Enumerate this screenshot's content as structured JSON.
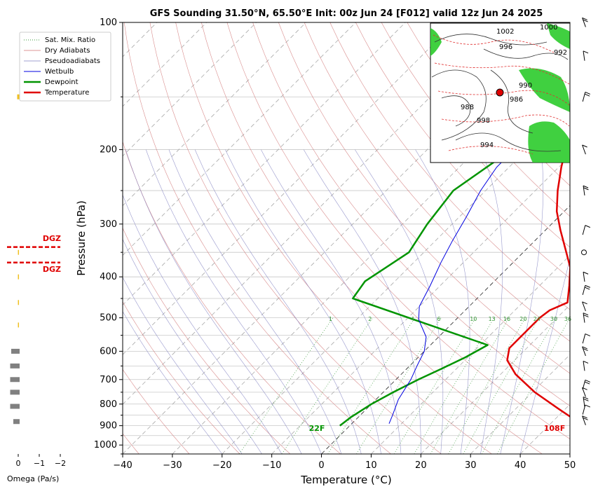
{
  "chart_data": {
    "type": "line",
    "subtype": "skew-T log-P sounding",
    "title": "GFS Sounding 31.50°N, 65.50°E Init: 00z Jun 24 [F012] valid 12z Jun 24 2025",
    "xlabel": "Temperature (°C)",
    "ylabel": "Pressure (hPa)",
    "xlim": [
      -40,
      50
    ],
    "ylim": [
      1050,
      100
    ],
    "y_scale": "log",
    "x_ticks": [
      -40,
      -30,
      -20,
      -10,
      0,
      10,
      20,
      30,
      40,
      50
    ],
    "y_ticks": [
      100,
      200,
      300,
      400,
      500,
      600,
      700,
      800,
      900,
      1000
    ],
    "grid": true,
    "legend_position": "top-left",
    "legend": [
      "Sat. Mix. Ratio",
      "Dry Adiabats",
      "Pseudoadiabats",
      "Wetbulb",
      "Dewpoint",
      "Temperature"
    ],
    "mixing_ratio_labels": [
      "1",
      "2",
      "4",
      "6",
      "10",
      "13",
      "16",
      "20",
      "24",
      "30",
      "36"
    ],
    "surface_temperature_label": "108F",
    "surface_dewpoint_label": "22F",
    "series": [
      {
        "name": "Temperature",
        "color": "#e00000",
        "points": [
          [
            47.0,
            900
          ],
          [
            45.0,
            880
          ],
          [
            38.5,
            820
          ],
          [
            30.5,
            750
          ],
          [
            23.0,
            680
          ],
          [
            18.5,
            630
          ],
          [
            16.5,
            590
          ],
          [
            16.5,
            560
          ],
          [
            16.5,
            500
          ],
          [
            17.0,
            480
          ],
          [
            19.0,
            460
          ],
          [
            16.0,
            420
          ],
          [
            12.5,
            380
          ],
          [
            8.0,
            345
          ],
          [
            3.0,
            310
          ],
          [
            -1.5,
            280
          ],
          [
            -5.5,
            250
          ],
          [
            -9.5,
            220
          ],
          [
            -11.5,
            205
          ],
          [
            -14.0,
            185
          ],
          [
            -15.5,
            160
          ],
          [
            -16.5,
            140
          ],
          [
            -19.0,
            125
          ],
          [
            -21.0,
            112
          ],
          [
            -22.5,
            100
          ]
        ]
      },
      {
        "name": "Dewpoint",
        "color": "#009400",
        "points": [
          [
            -2.0,
            900
          ],
          [
            -1.5,
            860
          ],
          [
            0.0,
            800
          ],
          [
            2.0,
            750
          ],
          [
            4.5,
            700
          ],
          [
            7.0,
            660
          ],
          [
            9.5,
            620
          ],
          [
            11.5,
            580
          ],
          [
            -25.0,
            450
          ],
          [
            -26.0,
            410
          ],
          [
            -23.0,
            350
          ],
          [
            -25.0,
            300
          ],
          [
            -26.5,
            250
          ],
          [
            -23.0,
            200
          ],
          [
            -21.0,
            160
          ],
          [
            -20.5,
            140
          ],
          [
            -23.0,
            125
          ],
          [
            -27.0,
            110
          ],
          [
            -29.0,
            100
          ]
        ]
      },
      {
        "name": "Wetbulb",
        "color": "#0000e0",
        "points": [
          [
            7.5,
            890
          ],
          [
            6.5,
            850
          ],
          [
            4.5,
            780
          ],
          [
            3.0,
            700
          ],
          [
            1.5,
            650
          ],
          [
            0.0,
            600
          ],
          [
            -2.5,
            555
          ],
          [
            -7.5,
            505
          ],
          [
            -10.0,
            470
          ],
          [
            -12.0,
            420
          ],
          [
            -14.5,
            370
          ],
          [
            -16.5,
            330
          ],
          [
            -18.5,
            290
          ],
          [
            -21.0,
            250
          ],
          [
            -22.5,
            220
          ],
          [
            -22.5,
            205
          ],
          [
            -21.5,
            180
          ],
          [
            -19.0,
            155
          ],
          [
            -17.5,
            140
          ]
        ]
      }
    ],
    "omega_panel": {
      "xlabel": "Omega (Pa/s)",
      "x_ticks": [
        "0",
        "−1",
        "−2"
      ],
      "xlim": [
        0.5,
        -2
      ],
      "bars": [
        {
          "pressure": 880,
          "omega": -0.3
        },
        {
          "pressure": 810,
          "omega": -0.45
        },
        {
          "pressure": 750,
          "omega": -0.45
        },
        {
          "pressure": 700,
          "omega": -0.45
        },
        {
          "pressure": 650,
          "omega": -0.45
        },
        {
          "pressure": 600,
          "omega": -0.4
        },
        {
          "pressure": 520,
          "omega": -0.03
        },
        {
          "pressure": 460,
          "omega": -0.03
        },
        {
          "pressure": 400,
          "omega": -0.03
        },
        {
          "pressure": 350,
          "omega": -0.03
        },
        {
          "pressure": 150,
          "omega": -0.1
        }
      ],
      "dgz_label": "DGZ",
      "dgz_pressures": [
        340,
        370
      ]
    },
    "wind_barbs": {
      "pressures": [
        875,
        825,
        790,
        750,
        720,
        650,
        600,
        560,
        500,
        470,
        430,
        400,
        350,
        310,
        250,
        200,
        150,
        120,
        100
      ]
    },
    "inset_map": {
      "point_marker_color": "#e00000",
      "visible_contour_labels": [
        "1000",
        "1002",
        "996",
        "992",
        "990",
        "998",
        "994",
        "986",
        "988"
      ]
    }
  }
}
